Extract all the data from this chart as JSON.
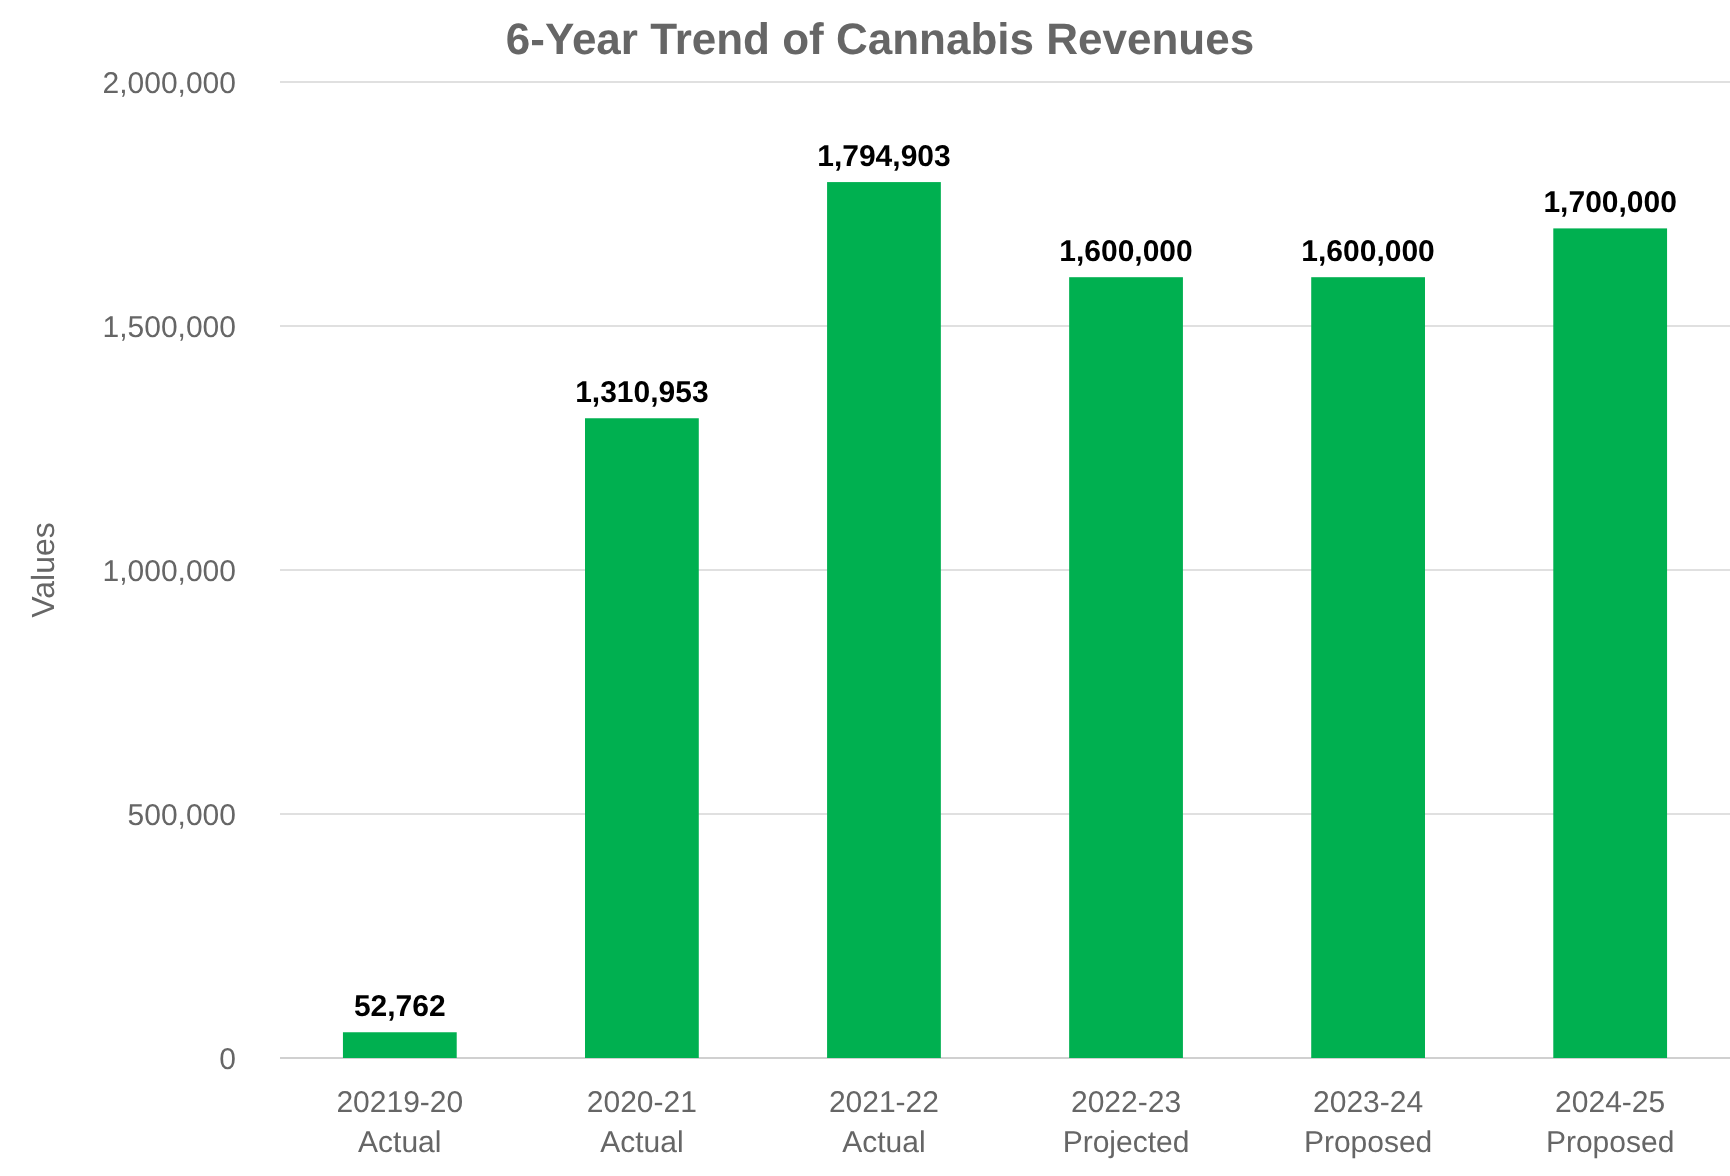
{
  "chart_data": {
    "type": "bar",
    "title": "6-Year Trend of Cannabis Revenues",
    "ylabel": "Values",
    "categories": [
      "20219-20\nActual",
      "2020-21\nActual",
      "2021-22\nActual",
      "2022-23\nProjected",
      "2023-24\nProposed",
      "2024-25\nProposed"
    ],
    "values": [
      52762,
      1310953,
      1794903,
      1600000,
      1600000,
      1700000
    ],
    "color": "#00b050",
    "ylim": [
      0,
      2000000
    ],
    "yticks": [
      {
        "value": 0,
        "label": "0"
      },
      {
        "value": 500000,
        "label": "500,000"
      },
      {
        "value": 1000000,
        "label": "1,000,000"
      },
      {
        "value": 1500000,
        "label": "1,500,000"
      },
      {
        "value": 2000000,
        "label": "2,000,000"
      }
    ],
    "value_labels": [
      "52,762",
      "1,310,953",
      "1,794,903",
      "1,600,000",
      "1,600,000",
      "1,700,000"
    ],
    "grid": "y"
  }
}
